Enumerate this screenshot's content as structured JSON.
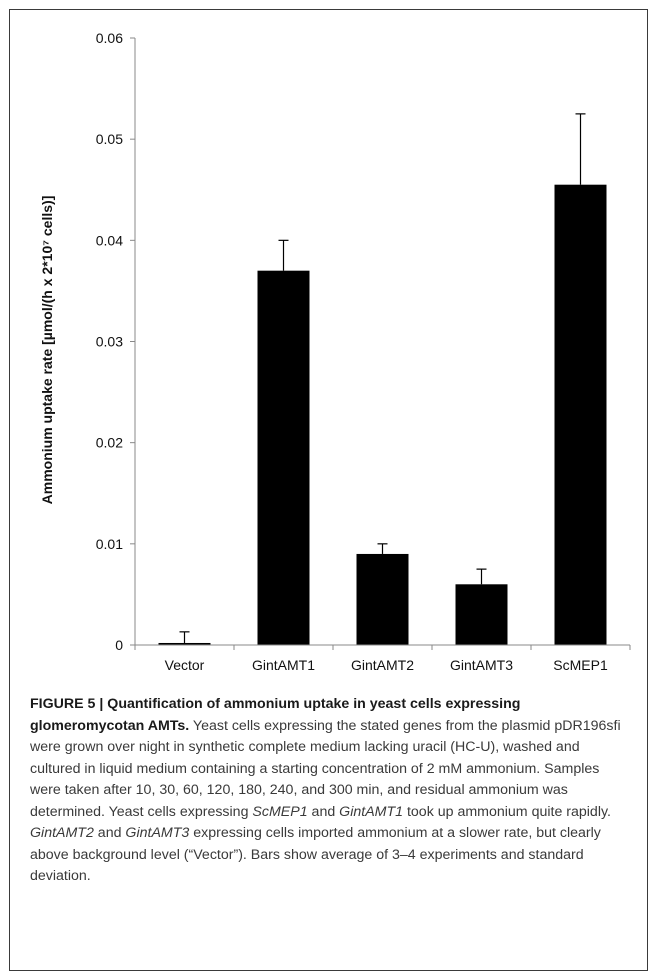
{
  "chart_data": {
    "type": "bar",
    "categories": [
      "Vector",
      "GintAMT1",
      "GintAMT2",
      "GintAMT3",
      "ScMEP1"
    ],
    "values": [
      0.0002,
      0.037,
      0.009,
      0.006,
      0.0455
    ],
    "error": [
      0.0011,
      0.003,
      0.001,
      0.0015,
      0.007
    ],
    "ylabel": "Ammonium uptake rate [µmol/(h x 2*10⁷ cells)]",
    "ylim": [
      0,
      0.06
    ],
    "yticks": [
      "0",
      "0.01",
      "0.02",
      "0.03",
      "0.04",
      "0.05",
      "0.06"
    ],
    "bar_color": "#000000",
    "grid": false
  },
  "caption": {
    "title": "FIGURE 5 | Quantification of ammonium uptake in yeast cells expressing glomeromycotan AMTs.",
    "t1": " Yeast cells expressing the stated genes from the plasmid pDR196sfi were grown over night in synthetic complete medium lacking uracil (HC-U), washed and cultured in liquid medium containing a starting concentration of 2 mM ammonium. Samples were taken after 10, 30, 60, 120, 180, 240, and 300 min, and residual ammonium was determined. Yeast cells expressing ",
    "g1": "ScMEP1",
    "t2": " and ",
    "g2": "GintAMT1",
    "t3": " took up ammonium quite rapidly. ",
    "g3": "GintAMT2",
    "t4": " and ",
    "g4": "GintAMT3",
    "t5": " expressing cells imported ammonium at a slower rate, but clearly above background level (“Vector”). Bars show average of 3–4 experiments and standard deviation."
  }
}
